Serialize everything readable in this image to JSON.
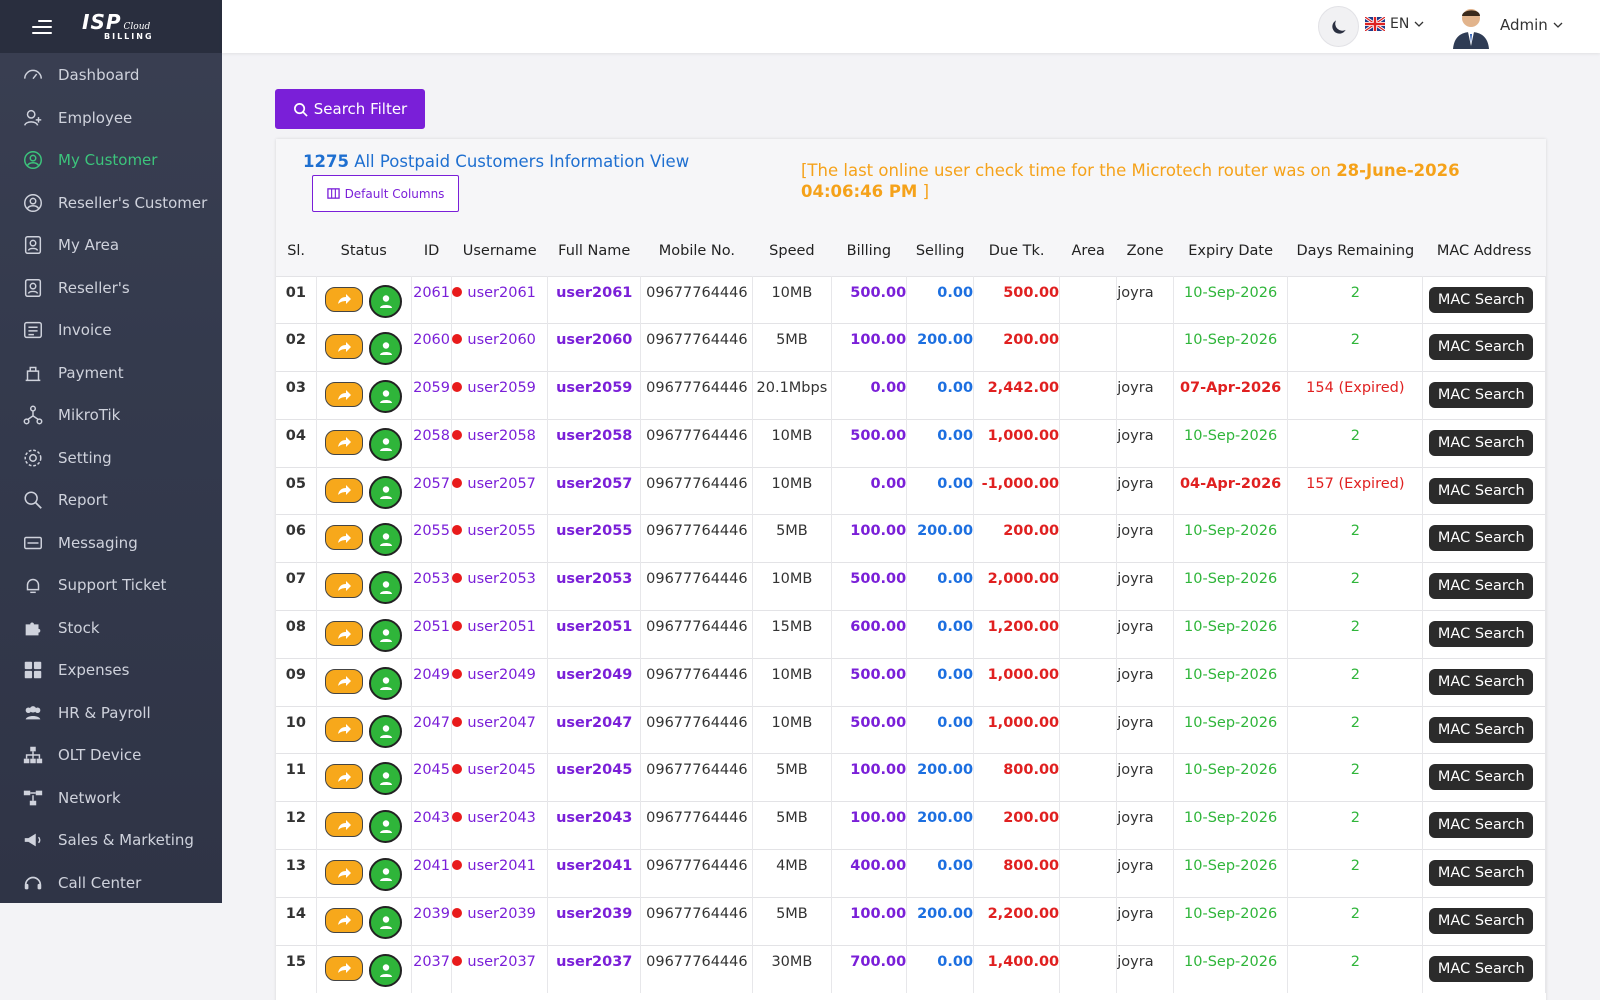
{
  "sidebar": {
    "logo_main": "ISP",
    "logo_cloud": "Cloud",
    "logo_sub": "BILLING",
    "items": [
      {
        "label": "Dashboard",
        "icon": "dashboard-icon",
        "active": false
      },
      {
        "label": "Employee",
        "icon": "employee-icon",
        "active": false
      },
      {
        "label": "My Customer",
        "icon": "customer-icon",
        "active": true
      },
      {
        "label": "Reseller's Customer",
        "icon": "reseller-customer-icon",
        "active": false
      },
      {
        "label": "My Area",
        "icon": "area-icon",
        "active": false
      },
      {
        "label": "Reseller's",
        "icon": "reseller-icon",
        "active": false
      },
      {
        "label": "Invoice",
        "icon": "invoice-icon",
        "active": false
      },
      {
        "label": "Payment",
        "icon": "payment-icon",
        "active": false
      },
      {
        "label": "MikroTik",
        "icon": "mikrotik-icon",
        "active": false
      },
      {
        "label": "Setting",
        "icon": "gear-icon",
        "active": false
      },
      {
        "label": "Report",
        "icon": "search-icon",
        "active": false
      },
      {
        "label": "Messaging",
        "icon": "message-icon",
        "active": false
      },
      {
        "label": "Support Ticket",
        "icon": "support-icon",
        "active": false
      },
      {
        "label": "Stock",
        "icon": "puzzle-icon",
        "active": false
      },
      {
        "label": "Expenses",
        "icon": "grid-icon",
        "active": false
      },
      {
        "label": "HR & Payroll",
        "icon": "users-icon",
        "active": false
      },
      {
        "label": "OLT Device",
        "icon": "sitemap-icon",
        "active": false
      },
      {
        "label": "Network",
        "icon": "network-icon",
        "active": false
      },
      {
        "label": "Sales & Marketing",
        "icon": "megaphone-icon",
        "active": false
      },
      {
        "label": "Call Center",
        "icon": "headset-icon",
        "active": false
      }
    ]
  },
  "header": {
    "language": "EN",
    "user": "Admin"
  },
  "toolbar": {
    "search_filter_label": "Search Filter",
    "default_columns_label": "Default Columns"
  },
  "summary": {
    "count": "1275",
    "title": "All Postpaid Customers Information View",
    "router_note_prefix": "[The last online user check time for the Microtech router was on ",
    "router_note_date": "28-June-2026 04:06:46 PM",
    "router_note_suffix": " ]"
  },
  "table": {
    "columns": [
      "Sl.",
      "Status",
      "ID",
      "Username",
      "Full Name",
      "Mobile No.",
      "Speed",
      "Billing",
      "Selling",
      "Due Tk.",
      "Area",
      "Zone",
      "Expiry Date",
      "Days Remaining",
      "MAC Address"
    ],
    "mac_button_label": "MAC Search",
    "rows": [
      {
        "sl": "01",
        "id": "2061",
        "username": "user2061",
        "full_name": "user2061",
        "mobile": "09677764446",
        "speed": "10MB",
        "billing": "500.00",
        "selling": "0.00",
        "due": "500.00",
        "area": "",
        "zone": "joyra",
        "expiry": "10-Sep-2026",
        "expired": false,
        "days": "2"
      },
      {
        "sl": "02",
        "id": "2060",
        "username": "user2060",
        "full_name": "user2060",
        "mobile": "09677764446",
        "speed": "5MB",
        "billing": "100.00",
        "selling": "200.00",
        "due": "200.00",
        "area": "",
        "zone": "",
        "expiry": "10-Sep-2026",
        "expired": false,
        "days": "2"
      },
      {
        "sl": "03",
        "id": "2059",
        "username": "user2059",
        "full_name": "user2059",
        "mobile": "09677764446",
        "speed": "20.1Mbps",
        "billing": "0.00",
        "selling": "0.00",
        "due": "2,442.00",
        "area": "",
        "zone": "joyra",
        "expiry": "07-Apr-2026",
        "expired": true,
        "days": "154 (Expired)"
      },
      {
        "sl": "04",
        "id": "2058",
        "username": "user2058",
        "full_name": "user2058",
        "mobile": "09677764446",
        "speed": "10MB",
        "billing": "500.00",
        "selling": "0.00",
        "due": "1,000.00",
        "area": "",
        "zone": "joyra",
        "expiry": "10-Sep-2026",
        "expired": false,
        "days": "2"
      },
      {
        "sl": "05",
        "id": "2057",
        "username": "user2057",
        "full_name": "user2057",
        "mobile": "09677764446",
        "speed": "10MB",
        "billing": "0.00",
        "selling": "0.00",
        "due": "-1,000.00",
        "area": "",
        "zone": "joyra",
        "expiry": "04-Apr-2026",
        "expired": true,
        "days": "157 (Expired)"
      },
      {
        "sl": "06",
        "id": "2055",
        "username": "user2055",
        "full_name": "user2055",
        "mobile": "09677764446",
        "speed": "5MB",
        "billing": "100.00",
        "selling": "200.00",
        "due": "200.00",
        "area": "",
        "zone": "joyra",
        "expiry": "10-Sep-2026",
        "expired": false,
        "days": "2"
      },
      {
        "sl": "07",
        "id": "2053",
        "username": "user2053",
        "full_name": "user2053",
        "mobile": "09677764446",
        "speed": "10MB",
        "billing": "500.00",
        "selling": "0.00",
        "due": "2,000.00",
        "area": "",
        "zone": "joyra",
        "expiry": "10-Sep-2026",
        "expired": false,
        "days": "2"
      },
      {
        "sl": "08",
        "id": "2051",
        "username": "user2051",
        "full_name": "user2051",
        "mobile": "09677764446",
        "speed": "15MB",
        "billing": "600.00",
        "selling": "0.00",
        "due": "1,200.00",
        "area": "",
        "zone": "joyra",
        "expiry": "10-Sep-2026",
        "expired": false,
        "days": "2"
      },
      {
        "sl": "09",
        "id": "2049",
        "username": "user2049",
        "full_name": "user2049",
        "mobile": "09677764446",
        "speed": "10MB",
        "billing": "500.00",
        "selling": "0.00",
        "due": "1,000.00",
        "area": "",
        "zone": "joyra",
        "expiry": "10-Sep-2026",
        "expired": false,
        "days": "2"
      },
      {
        "sl": "10",
        "id": "2047",
        "username": "user2047",
        "full_name": "user2047",
        "mobile": "09677764446",
        "speed": "10MB",
        "billing": "500.00",
        "selling": "0.00",
        "due": "1,000.00",
        "area": "",
        "zone": "joyra",
        "expiry": "10-Sep-2026",
        "expired": false,
        "days": "2"
      },
      {
        "sl": "11",
        "id": "2045",
        "username": "user2045",
        "full_name": "user2045",
        "mobile": "09677764446",
        "speed": "5MB",
        "billing": "100.00",
        "selling": "200.00",
        "due": "800.00",
        "area": "",
        "zone": "joyra",
        "expiry": "10-Sep-2026",
        "expired": false,
        "days": "2"
      },
      {
        "sl": "12",
        "id": "2043",
        "username": "user2043",
        "full_name": "user2043",
        "mobile": "09677764446",
        "speed": "5MB",
        "billing": "100.00",
        "selling": "200.00",
        "due": "200.00",
        "area": "",
        "zone": "joyra",
        "expiry": "10-Sep-2026",
        "expired": false,
        "days": "2"
      },
      {
        "sl": "13",
        "id": "2041",
        "username": "user2041",
        "full_name": "user2041",
        "mobile": "09677764446",
        "speed": "4MB",
        "billing": "400.00",
        "selling": "0.00",
        "due": "800.00",
        "area": "",
        "zone": "joyra",
        "expiry": "10-Sep-2026",
        "expired": false,
        "days": "2"
      },
      {
        "sl": "14",
        "id": "2039",
        "username": "user2039",
        "full_name": "user2039",
        "mobile": "09677764446",
        "speed": "5MB",
        "billing": "100.00",
        "selling": "200.00",
        "due": "2,200.00",
        "area": "",
        "zone": "joyra",
        "expiry": "10-Sep-2026",
        "expired": false,
        "days": "2"
      },
      {
        "sl": "15",
        "id": "2037",
        "username": "user2037",
        "full_name": "user2037",
        "mobile": "09677764446",
        "speed": "30MB",
        "billing": "700.00",
        "selling": "0.00",
        "due": "1,400.00",
        "area": "",
        "zone": "joyra",
        "expiry": "10-Sep-2026",
        "expired": false,
        "days": "2"
      }
    ]
  },
  "colors": {
    "accent": "#7a1fd8",
    "active_menu": "#3cc47c",
    "due": "#e02020",
    "selling": "#1c6fe0",
    "ok": "#2fb53a",
    "note": "#f5a21a"
  }
}
